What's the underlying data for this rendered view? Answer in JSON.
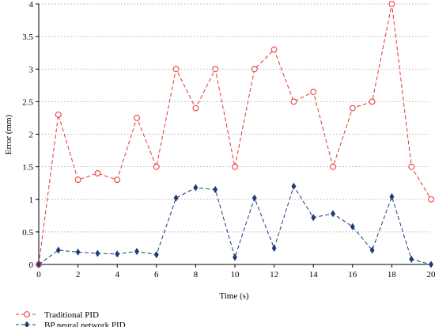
{
  "chart_data": {
    "type": "line",
    "title": "",
    "xlabel": "Time (s)",
    "ylabel": "Error (mm)",
    "xlim": [
      0,
      20
    ],
    "ylim": [
      0,
      4
    ],
    "xticks": [
      0,
      2,
      4,
      6,
      8,
      10,
      12,
      14,
      16,
      18,
      20
    ],
    "yticks": [
      0,
      0.5,
      1,
      1.5,
      2,
      2.5,
      3,
      3.5,
      4
    ],
    "ytick_labels": [
      "0",
      "0.5",
      "1",
      "1.5",
      "2",
      "2.5",
      "3",
      "3.5",
      "4"
    ],
    "grid": "horizontal dotted",
    "legend_position": "bottom-left, below plot",
    "x": [
      0,
      1,
      2,
      3,
      4,
      5,
      6,
      7,
      8,
      9,
      10,
      11,
      12,
      13,
      14,
      15,
      16,
      17,
      18,
      19,
      20
    ],
    "series": [
      {
        "name": "Traditional PID",
        "color": "#e8322d",
        "marker": "circle",
        "line_style": "dashed",
        "values": [
          0,
          2.3,
          1.3,
          1.4,
          1.3,
          2.25,
          1.5,
          3.0,
          2.4,
          3.0,
          1.5,
          3.0,
          3.3,
          2.5,
          2.65,
          1.5,
          2.4,
          2.5,
          4.0,
          1.5,
          1.0
        ]
      },
      {
        "name": "BP neural network PID",
        "color": "#1f3a7a",
        "marker": "diamond",
        "line_style": "dashed",
        "values": [
          0,
          0.22,
          0.19,
          0.17,
          0.16,
          0.2,
          0.15,
          1.02,
          1.18,
          1.15,
          0.11,
          1.02,
          0.25,
          1.2,
          0.72,
          0.78,
          0.58,
          0.22,
          1.04,
          0.08,
          0
        ]
      }
    ]
  }
}
